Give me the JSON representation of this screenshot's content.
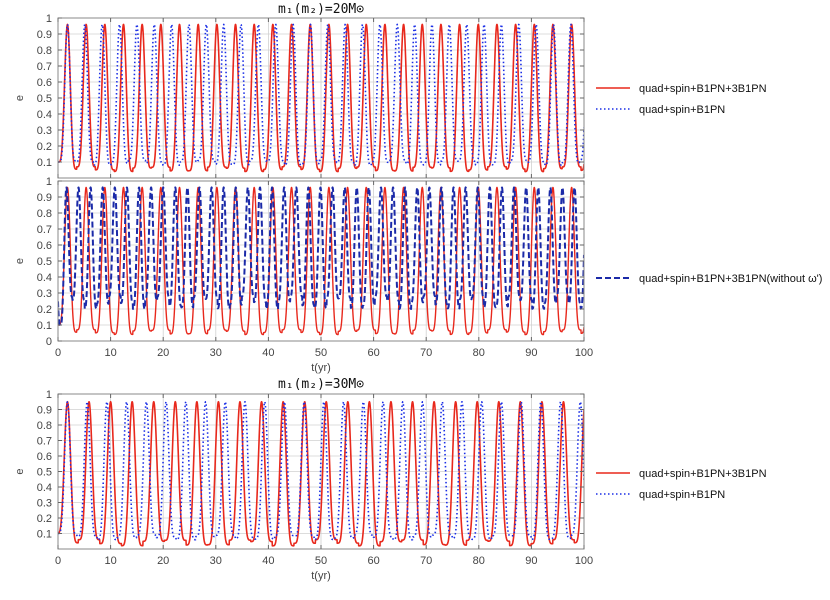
{
  "colors": {
    "red": "#e8281c",
    "blue": "#1a2ee6",
    "navy": "#1b2aa8",
    "grid": "#d0d0d0",
    "frame": "#888888"
  },
  "chart_data": [
    {
      "id": "panel1",
      "type": "line",
      "title": "m₁(m₂)=20M⊙",
      "xlabel": "",
      "ylabel": "e",
      "xlim": [
        0,
        100
      ],
      "ylim": [
        0,
        1
      ],
      "xticks": [
        0,
        10,
        20,
        30,
        40,
        50,
        60,
        70,
        80,
        90,
        100
      ],
      "yticks": [
        0.1,
        0.2,
        0.3,
        0.4,
        0.5,
        0.6,
        0.7,
        0.8,
        0.9,
        1
      ],
      "ytick_labels": [
        "0.1",
        "0.2",
        "0.3",
        "0.4",
        "0.5",
        "0.6",
        "0.7",
        "0.8",
        "0.9",
        "1"
      ],
      "show_xtick_labels": false,
      "legend": "right",
      "series": [
        {
          "name": "quad+spin+B1PN+3B1PN",
          "style": "solid",
          "color": "#e8281c",
          "width": 1.6,
          "period": 3.55,
          "phase": 1.8,
          "emax": 0.96,
          "emin": 0.04,
          "emin_var": 0.03,
          "sharp": 2.2
        },
        {
          "name": "quad+spin+B1PN",
          "style": "dotted",
          "color": "#1a2ee6",
          "width": 1.6,
          "period": 3.3,
          "phase": 1.8,
          "emax": 0.96,
          "emin": 0.08,
          "emin_var": 0.03,
          "sharp": 2.2
        }
      ]
    },
    {
      "id": "panel2",
      "type": "line",
      "title": "",
      "xlabel": "t(yr)",
      "ylabel": "e",
      "xlim": [
        0,
        100
      ],
      "ylim": [
        0,
        1
      ],
      "xticks": [
        0,
        10,
        20,
        30,
        40,
        50,
        60,
        70,
        80,
        90,
        100
      ],
      "yticks": [
        0,
        0.1,
        0.2,
        0.3,
        0.4,
        0.5,
        0.6,
        0.7,
        0.8,
        0.9,
        1
      ],
      "ytick_labels": [
        "0",
        "0.1",
        "0.2",
        "0.3",
        "0.4",
        "0.5",
        "0.6",
        "0.7",
        "0.8",
        "0.9",
        "1"
      ],
      "show_xtick_labels": true,
      "legend": "right",
      "series": [
        {
          "name": "quad+spin+B1PN+3B1PN",
          "style": "solid",
          "color": "#e8281c",
          "width": 1.4,
          "period": 3.55,
          "phase": 1.8,
          "emax": 0.96,
          "emin": 0.04,
          "emin_var": 0.03,
          "sharp": 2.2,
          "in_legend": false
        },
        {
          "name": "quad+spin+B1PN+3B1PN(without ω')",
          "style": "dashed",
          "color": "#1b2aa8",
          "width": 2.0,
          "period": 2.3,
          "phase": 1.6,
          "emax": 0.96,
          "emin": 0.2,
          "emin_var": 0.08,
          "sharp": 1.6
        }
      ]
    },
    {
      "id": "panel3",
      "type": "line",
      "title": "m₁(m₂)=30M⊙",
      "xlabel": "t(yr)",
      "ylabel": "e",
      "xlim": [
        0,
        100
      ],
      "ylim": [
        0,
        1
      ],
      "xticks": [
        0,
        10,
        20,
        30,
        40,
        50,
        60,
        70,
        80,
        90,
        100
      ],
      "yticks": [
        0.1,
        0.2,
        0.3,
        0.4,
        0.5,
        0.6,
        0.7,
        0.8,
        0.9,
        1
      ],
      "ytick_labels": [
        "0.1",
        "0.2",
        "0.3",
        "0.4",
        "0.5",
        "0.6",
        "0.7",
        "0.8",
        "0.9",
        "1"
      ],
      "show_xtick_labels": true,
      "legend": "right",
      "series": [
        {
          "name": "quad+spin+B1PN+3B1PN",
          "style": "solid",
          "color": "#e8281c",
          "width": 1.6,
          "period": 4.1,
          "phase": 1.8,
          "emax": 0.95,
          "emin": 0.02,
          "emin_var": 0.04,
          "sharp": 2.4
        },
        {
          "name": "quad+spin+B1PN",
          "style": "dotted",
          "color": "#1a2ee6",
          "width": 1.6,
          "period": 3.75,
          "phase": 1.8,
          "emax": 0.95,
          "emin": 0.06,
          "emin_var": 0.03,
          "sharp": 2.4
        }
      ]
    }
  ]
}
